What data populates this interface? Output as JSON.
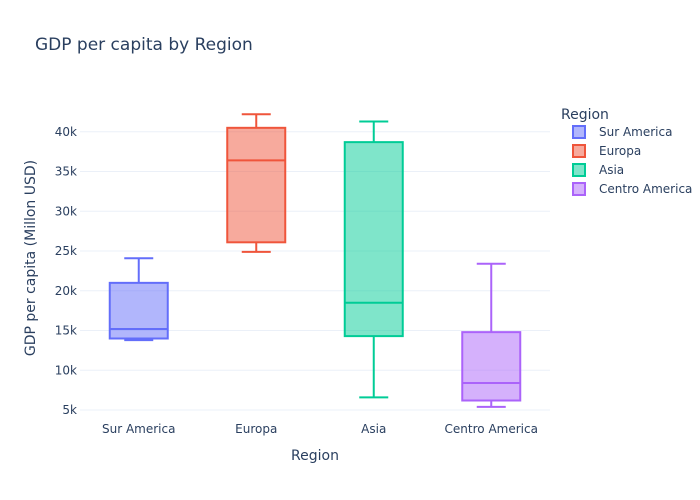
{
  "chart_data": {
    "type": "box",
    "title": "GDP per capita by Region",
    "xlabel": "Region",
    "ylabel": "GDP per capita (Millon USD)",
    "ylim": [
      4000,
      44000
    ],
    "yticks": [
      5000,
      10000,
      15000,
      20000,
      25000,
      30000,
      35000,
      40000
    ],
    "ytick_labels": [
      "5k",
      "10k",
      "15k",
      "20k",
      "25k",
      "30k",
      "35k",
      "40k"
    ],
    "legend_title": "Region",
    "legend_position": "top-right",
    "grid": true,
    "series": [
      {
        "name": "Sur America",
        "color": "#636efa",
        "min": 13800,
        "q1": 14000,
        "median": 15200,
        "q3": 21000,
        "max": 24100
      },
      {
        "name": "Europa",
        "color": "#ef553b",
        "min": 24900,
        "q1": 26100,
        "median": 36400,
        "q3": 40500,
        "max": 42200
      },
      {
        "name": "Asia",
        "color": "#00cc96",
        "min": 6600,
        "q1": 14300,
        "median": 18500,
        "q3": 38700,
        "max": 41300
      },
      {
        "name": "Centro America",
        "color": "#ab63fa",
        "min": 5400,
        "q1": 6200,
        "median": 8400,
        "q3": 14800,
        "max": 23400
      }
    ]
  }
}
